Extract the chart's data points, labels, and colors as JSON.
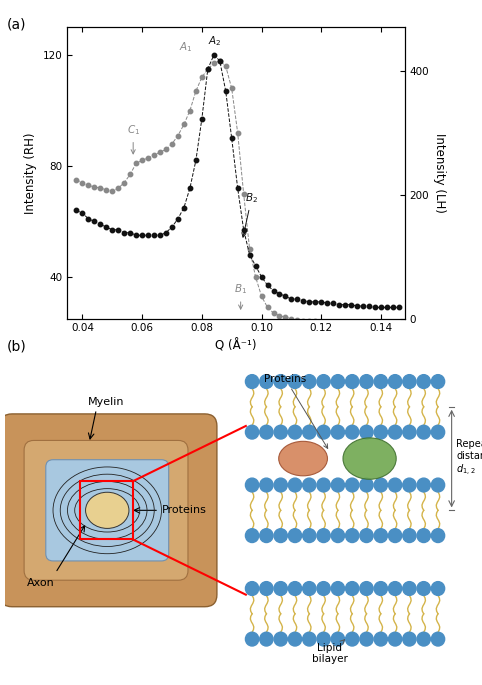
{
  "title_a": "(a)",
  "title_b": "(b)",
  "xlabel": "Q (Å⁻¹)",
  "ylabel_left": "Intensity (RH)",
  "ylabel_right": "Intensity (LH)",
  "xlim": [
    0.035,
    0.148
  ],
  "ylim_left": [
    25,
    130
  ],
  "ylim_right": [
    0,
    470
  ],
  "xticks": [
    0.04,
    0.06,
    0.08,
    0.1,
    0.12,
    0.14
  ],
  "yticks_left": [
    40,
    80,
    120
  ],
  "yticks_right": [
    0,
    200,
    400
  ],
  "gray_x": [
    0.038,
    0.04,
    0.042,
    0.044,
    0.046,
    0.048,
    0.05,
    0.052,
    0.054,
    0.056,
    0.058,
    0.06,
    0.062,
    0.064,
    0.066,
    0.068,
    0.07,
    0.072,
    0.074,
    0.076,
    0.078,
    0.08,
    0.082,
    0.084,
    0.086,
    0.088,
    0.09,
    0.092,
    0.094,
    0.096,
    0.098,
    0.1,
    0.102,
    0.104,
    0.106,
    0.108,
    0.11,
    0.112,
    0.114,
    0.116,
    0.118,
    0.12,
    0.122,
    0.124,
    0.126,
    0.128,
    0.13,
    0.132,
    0.134,
    0.136,
    0.138,
    0.14,
    0.142,
    0.144,
    0.146
  ],
  "gray_y": [
    75,
    74,
    73,
    72.5,
    72,
    71.5,
    71,
    72,
    74,
    77,
    81,
    82,
    83,
    84,
    85,
    86,
    88,
    91,
    95,
    100,
    107,
    112,
    115,
    117,
    118,
    116,
    108,
    92,
    70,
    50,
    40,
    33,
    29,
    27,
    26,
    25.5,
    25,
    24.5,
    24,
    24,
    24,
    23.5,
    23.5,
    23.5,
    23,
    23,
    23,
    23,
    23,
    22.5,
    22.5,
    22.5,
    22.5,
    22,
    22
  ],
  "black_x": [
    0.038,
    0.04,
    0.042,
    0.044,
    0.046,
    0.048,
    0.05,
    0.052,
    0.054,
    0.056,
    0.058,
    0.06,
    0.062,
    0.064,
    0.066,
    0.068,
    0.07,
    0.072,
    0.074,
    0.076,
    0.078,
    0.08,
    0.082,
    0.084,
    0.086,
    0.088,
    0.09,
    0.092,
    0.094,
    0.096,
    0.098,
    0.1,
    0.102,
    0.104,
    0.106,
    0.108,
    0.11,
    0.112,
    0.114,
    0.116,
    0.118,
    0.12,
    0.122,
    0.124,
    0.126,
    0.128,
    0.13,
    0.132,
    0.134,
    0.136,
    0.138,
    0.14,
    0.142,
    0.144,
    0.146
  ],
  "black_y": [
    64,
    63,
    61,
    60,
    59,
    58,
    57,
    57,
    56,
    56,
    55,
    55,
    55,
    55,
    55,
    56,
    58,
    61,
    65,
    72,
    82,
    97,
    115,
    120,
    118,
    107,
    90,
    72,
    57,
    48,
    44,
    40,
    37,
    35,
    34,
    33,
    32,
    32,
    31.5,
    31,
    31,
    31,
    30.5,
    30.5,
    30,
    30,
    30,
    29.5,
    29.5,
    29.5,
    29,
    29,
    29,
    29,
    29
  ],
  "gray_color": "#888888",
  "black_color": "#111111",
  "bg_color": "#ffffff",
  "blue_head": "#4A8FC4",
  "yellow_tail": "#D4B44A",
  "orange_protein": "#D4845A",
  "green_protein": "#70A850"
}
